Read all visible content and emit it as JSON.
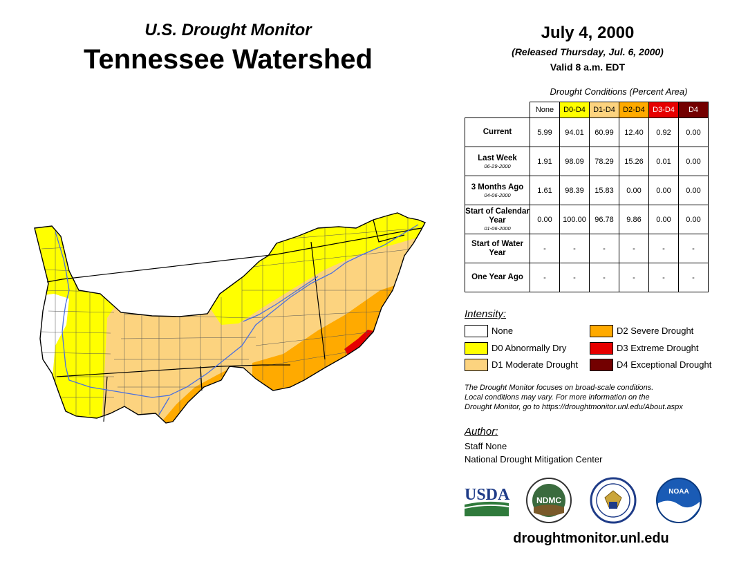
{
  "header": {
    "subtitle": "U.S. Drought Monitor",
    "title": "Tennessee Watershed",
    "date": "July 4, 2000",
    "released": "(Released Thursday, Jul. 6, 2000)",
    "valid": "Valid 8 a.m. EDT"
  },
  "table": {
    "caption": "Drought Conditions (Percent Area)",
    "columns": [
      "None",
      "D0-D4",
      "D1-D4",
      "D2-D4",
      "D3-D4",
      "D4"
    ],
    "rows": [
      {
        "label": "Current",
        "sublabel": "",
        "values": [
          "5.99",
          "94.01",
          "60.99",
          "12.40",
          "0.92",
          "0.00"
        ]
      },
      {
        "label": "Last Week",
        "sublabel": "06-29-2000",
        "values": [
          "1.91",
          "98.09",
          "78.29",
          "15.26",
          "0.01",
          "0.00"
        ]
      },
      {
        "label": "3 Months Ago",
        "sublabel": "04-06-2000",
        "values": [
          "1.61",
          "98.39",
          "15.83",
          "0.00",
          "0.00",
          "0.00"
        ]
      },
      {
        "label": "Start of Calendar Year",
        "sublabel": "01-06-2000",
        "values": [
          "0.00",
          "100.00",
          "96.78",
          "9.86",
          "0.00",
          "0.00"
        ]
      },
      {
        "label": "Start of Water Year",
        "sublabel": "",
        "values": [
          "-",
          "-",
          "-",
          "-",
          "-",
          "-"
        ]
      },
      {
        "label": "One Year Ago",
        "sublabel": "",
        "values": [
          "-",
          "-",
          "-",
          "-",
          "-",
          "-"
        ]
      }
    ]
  },
  "legend": {
    "title": "Intensity:",
    "items": [
      {
        "label": "None",
        "color": "#ffffff"
      },
      {
        "label": "D0 Abnormally Dry",
        "color": "#ffff00"
      },
      {
        "label": "D1 Moderate Drought",
        "color": "#fcd37f"
      },
      {
        "label": "D2 Severe Drought",
        "color": "#ffaa00"
      },
      {
        "label": "D3 Extreme Drought",
        "color": "#e60000"
      },
      {
        "label": "D4 Exceptional Drought",
        "color": "#730000"
      }
    ]
  },
  "note": {
    "line1": "The Drought Monitor focuses on broad-scale conditions.",
    "line2": "Local conditions may vary. For more information on the",
    "line3": "Drought Monitor, go to https://droughtmonitor.unl.edu/About.aspx"
  },
  "author": {
    "title": "Author:",
    "name": "Staff None",
    "org": "National Drought Mitigation Center"
  },
  "logos": {
    "usda": "USDA",
    "ndmc": "NDMC",
    "noaa": "NOAA"
  },
  "website": "droughtmonitor.unl.edu"
}
